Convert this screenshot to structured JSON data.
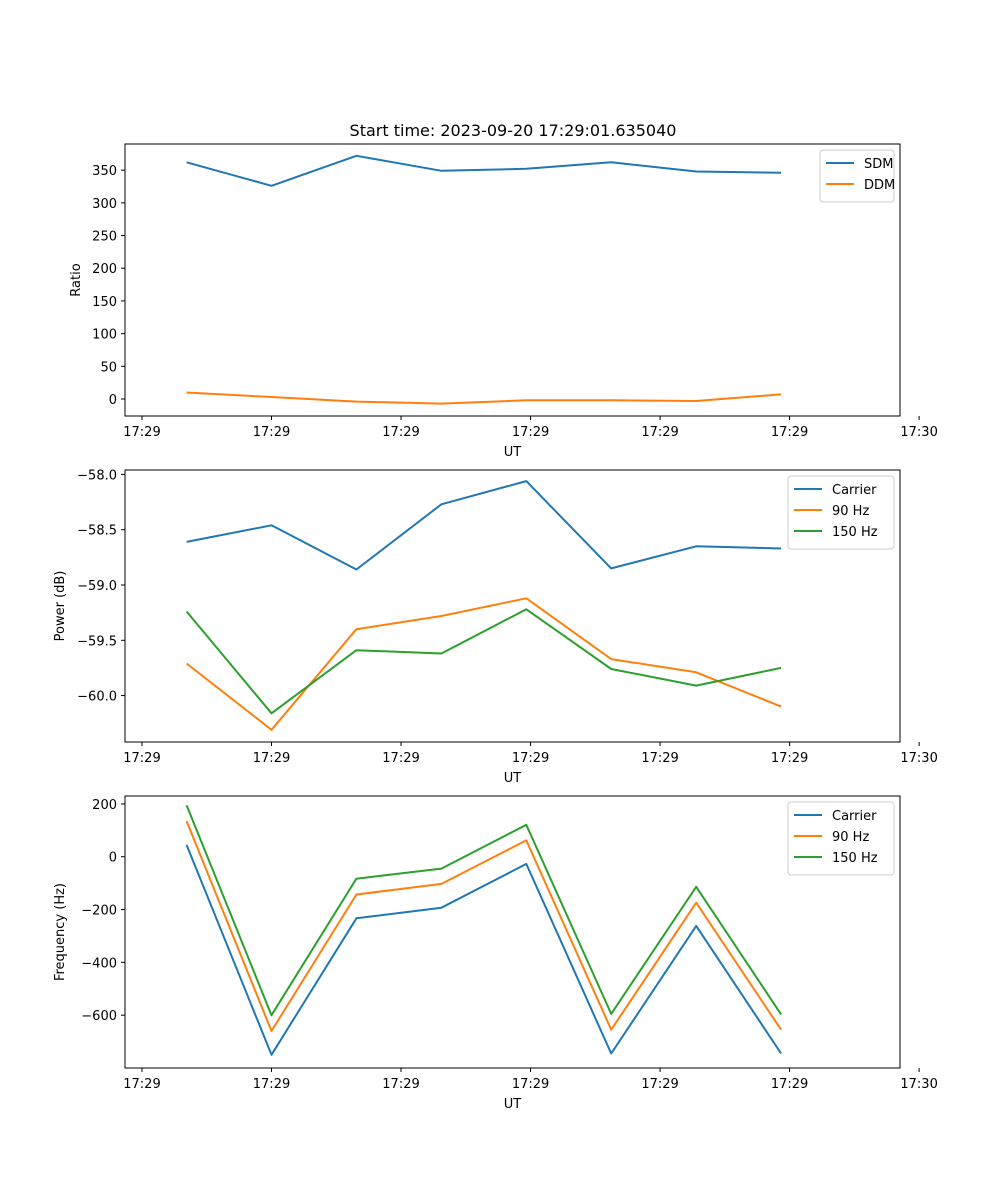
{
  "figure_title": "Start time: 2023-09-20 17:29:01.635040",
  "chart_data": [
    {
      "type": "line",
      "title": "Start time: 2023-09-20 17:29:01.635040",
      "xlabel": "UT",
      "ylabel": "Ratio",
      "x": [
        1,
        2,
        3,
        4,
        5,
        6,
        7,
        8
      ],
      "xlim": [
        0.275,
        9.4
      ],
      "xticks": [
        0.475,
        2.0,
        3.525,
        5.05,
        6.575,
        8.1,
        9.625
      ],
      "xtick_labels": [
        "17:29",
        "17:29",
        "17:29",
        "17:29",
        "17:29",
        "17:29",
        "17:30"
      ],
      "ylim": [
        -26,
        390
      ],
      "yticks": [
        0,
        50,
        100,
        150,
        200,
        250,
        300,
        350
      ],
      "ytick_labels": [
        "0",
        "50",
        "100",
        "150",
        "200",
        "250",
        "300",
        "350"
      ],
      "legend": "top-right",
      "series": [
        {
          "name": "SDM",
          "color": "#1f77b4",
          "values": [
            362,
            326,
            372,
            349,
            352,
            362,
            348,
            346
          ]
        },
        {
          "name": "DDM",
          "color": "#ff7f0e",
          "values": [
            10,
            3,
            -4,
            -7,
            -2,
            -2,
            -3,
            7
          ]
        }
      ]
    },
    {
      "type": "line",
      "xlabel": "UT",
      "ylabel": "Power (dB)",
      "x": [
        1,
        2,
        3,
        4,
        5,
        6,
        7,
        8
      ],
      "xlim": [
        0.275,
        9.4
      ],
      "xticks": [
        0.475,
        2.0,
        3.525,
        5.05,
        6.575,
        8.1,
        9.625
      ],
      "xtick_labels": [
        "17:29",
        "17:29",
        "17:29",
        "17:29",
        "17:29",
        "17:29",
        "17:30"
      ],
      "ylim": [
        -60.42,
        -57.96
      ],
      "yticks": [
        -60.0,
        -59.5,
        -59.0,
        -58.5,
        -58.0
      ],
      "ytick_labels": [
        "−60.0",
        "−59.5",
        "−59.0",
        "−58.5",
        "−58.0"
      ],
      "legend": "top-right",
      "series": [
        {
          "name": "Carrier",
          "color": "#1f77b4",
          "values": [
            -58.61,
            -58.46,
            -58.86,
            -58.27,
            -58.06,
            -58.85,
            -58.65,
            -58.67
          ]
        },
        {
          "name": "90 Hz",
          "color": "#ff7f0e",
          "values": [
            -59.71,
            -60.31,
            -59.4,
            -59.28,
            -59.12,
            -59.67,
            -59.79,
            -60.1
          ]
        },
        {
          "name": "150 Hz",
          "color": "#2ca02c",
          "values": [
            -59.24,
            -60.16,
            -59.59,
            -59.62,
            -59.22,
            -59.76,
            -59.91,
            -59.75
          ]
        }
      ]
    },
    {
      "type": "line",
      "xlabel": "UT",
      "ylabel": "Frequency (Hz)",
      "x": [
        1,
        2,
        3,
        4,
        5,
        6,
        7,
        8
      ],
      "xlim": [
        0.275,
        9.4
      ],
      "xticks": [
        0.475,
        2.0,
        3.525,
        5.05,
        6.575,
        8.1,
        9.625
      ],
      "xtick_labels": [
        "17:29",
        "17:29",
        "17:29",
        "17:29",
        "17:29",
        "17:29",
        "17:30"
      ],
      "ylim": [
        -800,
        230
      ],
      "yticks": [
        -600,
        -400,
        -200,
        0,
        200
      ],
      "ytick_labels": [
        "−600",
        "−400",
        "−200",
        "0",
        "200"
      ],
      "legend": "top-right",
      "series": [
        {
          "name": "Carrier",
          "color": "#1f77b4",
          "values": [
            45,
            -750,
            -233,
            -193,
            -27,
            -745,
            -262,
            -745
          ]
        },
        {
          "name": "90 Hz",
          "color": "#ff7f0e",
          "values": [
            135,
            -660,
            -143,
            -103,
            62,
            -655,
            -174,
            -655
          ]
        },
        {
          "name": "150 Hz",
          "color": "#2ca02c",
          "values": [
            195,
            -600,
            -83,
            -45,
            121,
            -595,
            -114,
            -597
          ]
        }
      ]
    }
  ]
}
